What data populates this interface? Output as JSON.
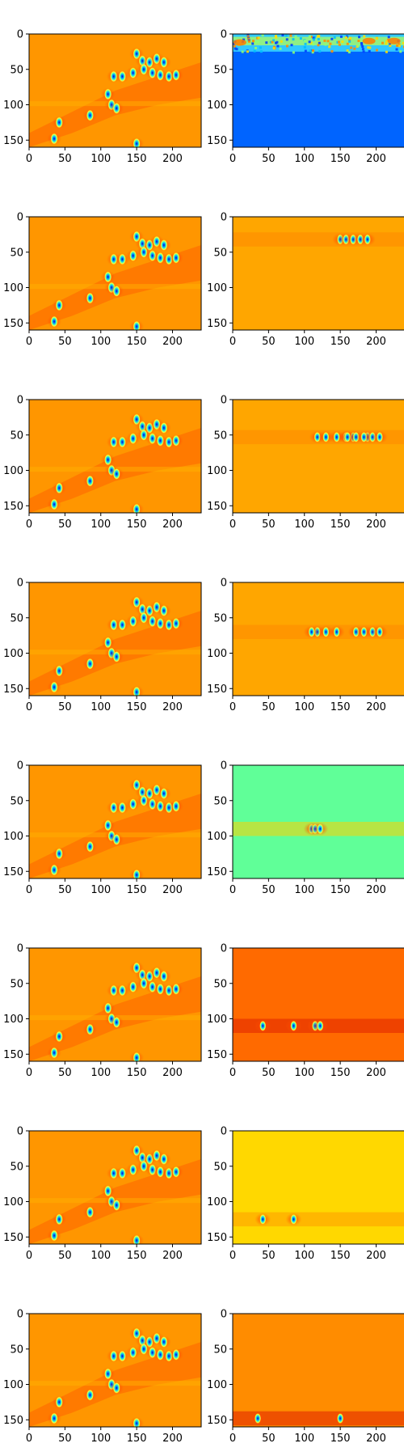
{
  "figure": {
    "rows": 8,
    "cols": 2,
    "colormap": "jet"
  },
  "chart_data": [
    {
      "type": "heatmap",
      "panel": "r1-left",
      "blob_band_center_y": null,
      "background": "#ff9600"
    },
    {
      "type": "heatmap",
      "panel": "r1-right",
      "blob_band_center_y": 10,
      "background": "#0064ff"
    },
    {
      "type": "heatmap",
      "panel": "r2-left",
      "blob_band_center_y": null,
      "background": "#ff9600"
    },
    {
      "type": "heatmap",
      "panel": "r2-right",
      "blob_band_center_y": 32,
      "background": "#ffa600"
    },
    {
      "type": "heatmap",
      "panel": "r3-left",
      "blob_band_center_y": null,
      "background": "#ff9600"
    },
    {
      "type": "heatmap",
      "panel": "r3-right",
      "blob_band_center_y": 53,
      "background": "#ffa600"
    },
    {
      "type": "heatmap",
      "panel": "r4-left",
      "blob_band_center_y": null,
      "background": "#ff9600"
    },
    {
      "type": "heatmap",
      "panel": "r4-right",
      "blob_band_center_y": 70,
      "background": "#ffa600"
    },
    {
      "type": "heatmap",
      "panel": "r5-left",
      "blob_band_center_y": null,
      "background": "#ff9600"
    },
    {
      "type": "heatmap",
      "panel": "r5-right",
      "blob_band_center_y": 90,
      "background": "#60ff98"
    },
    {
      "type": "heatmap",
      "panel": "r6-left",
      "blob_band_center_y": null,
      "background": "#ff9600"
    },
    {
      "type": "heatmap",
      "panel": "r6-right",
      "blob_band_center_y": 110,
      "background": "#ff6a00"
    },
    {
      "type": "heatmap",
      "panel": "r7-left",
      "blob_band_center_y": null,
      "background": "#ff9600"
    },
    {
      "type": "heatmap",
      "panel": "r7-right",
      "blob_band_center_y": 125,
      "background": "#ffd800"
    },
    {
      "type": "heatmap",
      "panel": "r8-left",
      "blob_band_center_y": null,
      "background": "#ff9600"
    },
    {
      "type": "heatmap",
      "panel": "r8-right",
      "blob_band_center_y": 148,
      "background": "#ff8c00"
    }
  ],
  "axes": {
    "xlim": [
      0,
      240
    ],
    "ylim": [
      0,
      160
    ],
    "y_inverted": true,
    "x_ticks": [
      0,
      50,
      100,
      150,
      200
    ],
    "y_ticks": [
      0,
      50,
      100,
      150
    ],
    "x_tick_labels": [
      "0",
      "50",
      "100",
      "150",
      "200"
    ],
    "y_tick_labels": [
      "0",
      "50",
      "100",
      "150"
    ]
  },
  "blobs": {
    "spots_left": [
      [
        150,
        28
      ],
      [
        158,
        38
      ],
      [
        168,
        40
      ],
      [
        178,
        35
      ],
      [
        188,
        40
      ],
      [
        118,
        60
      ],
      [
        130,
        60
      ],
      [
        145,
        55
      ],
      [
        160,
        50
      ],
      [
        172,
        55
      ],
      [
        183,
        58
      ],
      [
        195,
        60
      ],
      [
        205,
        58
      ],
      [
        110,
        85
      ],
      [
        115,
        100
      ],
      [
        122,
        105
      ],
      [
        85,
        115
      ],
      [
        42,
        125
      ],
      [
        35,
        148
      ],
      [
        150,
        155
      ]
    ]
  }
}
